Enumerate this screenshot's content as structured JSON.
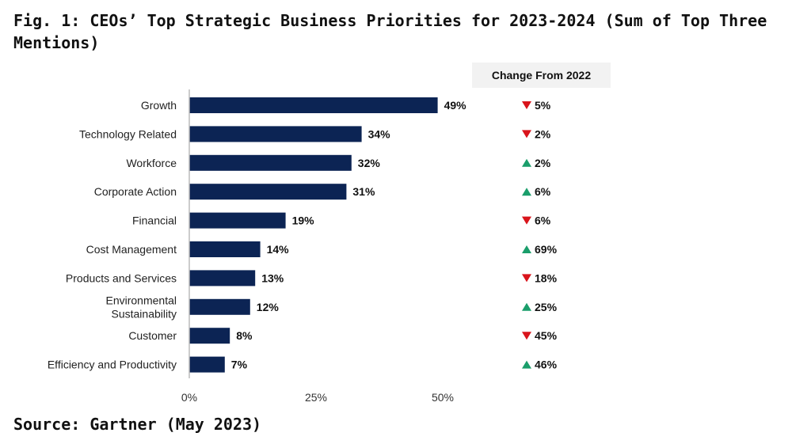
{
  "title": "Fig. 1: CEOs’ Top Strategic Business Priorities for 2023-2024 (Sum of Top Three Mentions)",
  "source": "Source: Gartner (May 2023)",
  "change_header": "Change From 2022",
  "colors": {
    "bar": "#0c2454",
    "up": "#1a9e6b",
    "down": "#d9141b"
  },
  "chart_data": {
    "type": "bar",
    "orientation": "horizontal",
    "title": "Fig. 1: CEOs’ Top Strategic Business Priorities for 2023-2024 (Sum of Top Three Mentions)",
    "categories": [
      "Growth",
      "Technology Related",
      "Workforce",
      "Corporate Action",
      "Financial",
      "Cost Management",
      "Products and Services",
      "Environmental Sustainability",
      "Customer",
      "Efficiency and Productivity"
    ],
    "category_lines": [
      [
        "Growth"
      ],
      [
        "Technology Related"
      ],
      [
        "Workforce"
      ],
      [
        "Corporate Action"
      ],
      [
        "Financial"
      ],
      [
        "Cost Management"
      ],
      [
        "Products and Services"
      ],
      [
        "Environmental",
        "Sustainability"
      ],
      [
        "Customer"
      ],
      [
        "Efficiency and Productivity"
      ]
    ],
    "values": [
      49,
      34,
      32,
      31,
      19,
      14,
      13,
      12,
      8,
      7
    ],
    "data_labels": [
      "49%",
      "34%",
      "32%",
      "31%",
      "19%",
      "14%",
      "13%",
      "12%",
      "8%",
      "7%"
    ],
    "change_from_2022": [
      {
        "direction": "down",
        "label": "5%"
      },
      {
        "direction": "down",
        "label": "2%"
      },
      {
        "direction": "up",
        "label": "2%"
      },
      {
        "direction": "up",
        "label": "6%"
      },
      {
        "direction": "down",
        "label": "6%"
      },
      {
        "direction": "up",
        "label": "69%"
      },
      {
        "direction": "down",
        "label": "18%"
      },
      {
        "direction": "up",
        "label": "25%"
      },
      {
        "direction": "down",
        "label": "45%"
      },
      {
        "direction": "up",
        "label": "46%"
      }
    ],
    "xlim": [
      0,
      50
    ],
    "xticks": [
      "0%",
      "25%",
      "50%"
    ],
    "xtick_values": [
      0,
      25,
      50
    ],
    "grid": false,
    "legend": "none"
  }
}
